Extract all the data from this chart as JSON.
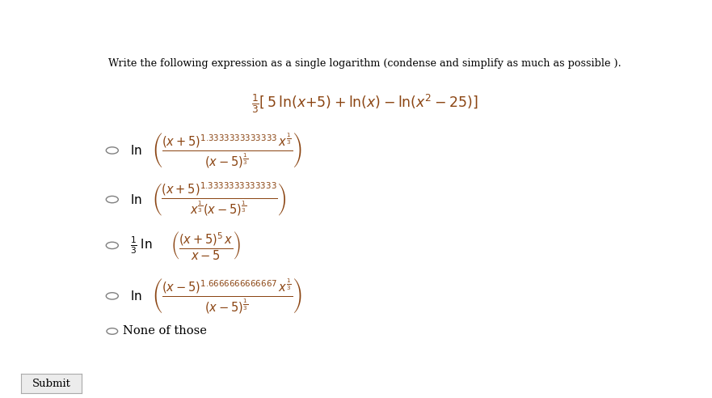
{
  "title": "Write the following expression as a single logarithm (condense and simplify as much as possible ).",
  "background_color": "#ffffff",
  "text_color": "#000000",
  "math_color": "#8B4513",
  "radio_color": "#808080",
  "figsize": [
    8.81,
    4.92
  ],
  "dpi": 100,
  "main_expr": "$\\frac{1}{3}\\left[\\,5\\,\\ln(x{+}5)+\\ln(x)-\\ln\\!\\left(x^{2}-25\\right)\\right]$",
  "opt1_prefix": "$\\ln$",
  "opt1_expr": "$\\left(\\dfrac{(x+5)^{1.3333333333333}\\,x^{\\frac{1}{3}}}{(x-5)^{\\frac{1}{3}}}\\right)$",
  "opt2_prefix": "$\\ln$",
  "opt2_expr": "$\\left(\\dfrac{(x+5)^{1.3333333333333}}{x^{\\frac{1}{3}}(x-5)^{\\frac{1}{3}}}\\right)$",
  "opt3_prefix": "$\\frac{1}{3}\\;\\ln$",
  "opt3_expr": "$\\left(\\dfrac{(x+5)^{5}\\,x}{x-5}\\right)$",
  "opt4_prefix": "$\\ln$",
  "opt4_expr": "$\\left(\\dfrac{(x-5)^{1.6666666666667}\\,x^{\\frac{1}{3}}}{(x-5)^{\\frac{1}{3}}}\\right)$",
  "opt5_text": "None of those",
  "submit_text": "Submit"
}
